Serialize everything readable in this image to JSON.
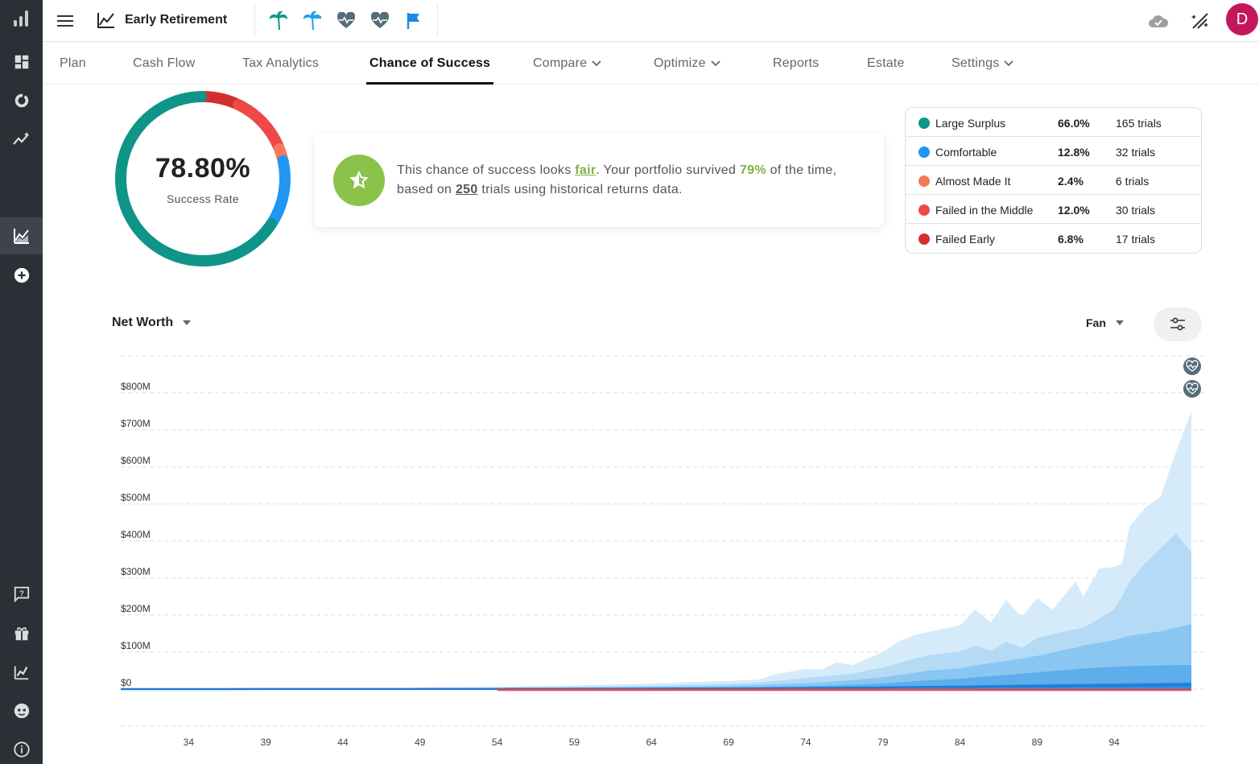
{
  "app": {
    "plan_title": "Early Retirement",
    "avatar_letter": "D"
  },
  "sidebar": {
    "items": [
      {
        "icon": "analytics-logo-icon"
      },
      {
        "icon": "dashboard-icon"
      },
      {
        "icon": "donut-icon"
      },
      {
        "icon": "trend-icon"
      },
      {
        "icon": "area-chart-icon",
        "active": true
      },
      {
        "icon": "add-circle-icon"
      },
      {
        "icon": "help-chat-icon"
      },
      {
        "icon": "gift-icon"
      },
      {
        "icon": "insights-icon"
      },
      {
        "icon": "face-icon"
      },
      {
        "icon": "info-icon"
      }
    ]
  },
  "header": {
    "quick_icons": [
      "palm-tree-icon",
      "palm-tree-icon",
      "heart-pulse-icon",
      "heart-pulse-icon",
      "flag-icon"
    ],
    "right_icons": [
      "cloud-check-icon",
      "magic-off-icon"
    ]
  },
  "tabs": [
    {
      "label": "Plan"
    },
    {
      "label": "Cash Flow"
    },
    {
      "label": "Tax Analytics"
    },
    {
      "label": "Chance of Success",
      "active": true
    },
    {
      "label": "Compare",
      "dropdown": true
    },
    {
      "label": "Optimize",
      "dropdown": true
    },
    {
      "label": "Reports"
    },
    {
      "label": "Estate"
    },
    {
      "label": "Settings",
      "dropdown": true
    }
  ],
  "success": {
    "rate": "78.80%",
    "rate_label": "Success Rate",
    "donut_segments": [
      {
        "name": "Large Surplus",
        "percent": 66.0,
        "color": "#0f9488"
      },
      {
        "name": "Comfortable",
        "percent": 12.8,
        "color": "#2196f3"
      },
      {
        "name": "Almost Made It",
        "percent": 2.4,
        "color": "#f4795b"
      },
      {
        "name": "Failed in the Middle",
        "percent": 12.0,
        "color": "#ef4848"
      },
      {
        "name": "Failed Early",
        "percent": 6.8,
        "color": "#d32f2f"
      }
    ]
  },
  "message": {
    "part1": "This chance of success looks ",
    "fair": "fair",
    "part2": ". Your portfolio survived ",
    "pct": "79%",
    "part3": " of the time, based on ",
    "trials": "250",
    "part4": " trials using historical returns data.",
    "badge_icon": "star-icon",
    "badge_color": "#8bc34a"
  },
  "legend": [
    {
      "name": "Large Surplus",
      "pct": "66.0%",
      "trials": "165 trials",
      "color": "#0f9488"
    },
    {
      "name": "Comfortable",
      "pct": "12.8%",
      "trials": "32 trials",
      "color": "#2196f3"
    },
    {
      "name": "Almost Made It",
      "pct": "2.4%",
      "trials": "6 trials",
      "color": "#f4795b"
    },
    {
      "name": "Failed in the Middle",
      "pct": "12.0%",
      "trials": "30 trials",
      "color": "#ef4848"
    },
    {
      "name": "Failed Early",
      "pct": "6.8%",
      "trials": "17 trials",
      "color": "#d32f2f"
    }
  ],
  "controls": {
    "metric": "Net Worth",
    "view": "Fan"
  },
  "chart_data": {
    "type": "area",
    "y_ticks": [
      "$0",
      "$100M",
      "$200M",
      "$300M",
      "$400M",
      "$500M",
      "$600M",
      "$700M",
      "$800M"
    ],
    "x_ticks": [
      "34",
      "39",
      "44",
      "49",
      "54",
      "59",
      "64",
      "69",
      "74",
      "79",
      "84",
      "89",
      "94"
    ],
    "ylim": [
      0,
      900
    ],
    "xlim": [
      29.6,
      99
    ],
    "grid": true,
    "x": [
      29.6,
      34,
      39,
      44,
      49,
      54,
      59,
      64,
      66,
      69,
      71,
      72,
      74,
      75,
      76,
      77,
      79,
      80,
      81,
      82,
      84,
      85,
      86,
      87,
      88,
      89,
      90,
      91,
      91.5,
      92,
      93,
      94,
      94.5,
      95,
      96,
      97,
      98,
      99
    ],
    "series": [
      {
        "color": "#d6ebfa",
        "values": [
          0.3,
          0.7,
          1.3,
          2.2,
          3.8,
          6,
          10,
          15,
          18,
          22,
          26,
          40,
          55,
          53,
          72,
          65,
          100,
          128,
          145,
          155,
          172,
          215,
          180,
          240,
          195,
          245,
          215,
          265,
          290,
          250,
          325,
          330,
          340,
          440,
          490,
          520,
          640,
          750
        ]
      },
      {
        "color": "#b4daf6",
        "values": [
          0.2,
          0.4,
          0.8,
          1.4,
          2.5,
          4,
          6.5,
          9,
          11,
          14,
          18,
          22,
          30,
          34,
          38,
          42,
          58,
          70,
          82,
          92,
          102,
          118,
          104,
          128,
          112,
          138,
          148,
          158,
          162,
          166,
          190,
          215,
          250,
          290,
          340,
          380,
          420,
          370
        ]
      },
      {
        "color": "#8ac6f2",
        "values": [
          0.1,
          0.3,
          0.5,
          0.9,
          1.5,
          2.5,
          4,
          6,
          7,
          9,
          11,
          13,
          16,
          18,
          21,
          24,
          32,
          38,
          44,
          50,
          56,
          64,
          70,
          76,
          82,
          90,
          98,
          108,
          112,
          118,
          125,
          132,
          138,
          144,
          150,
          156,
          166,
          175
        ]
      },
      {
        "color": "#5eaeec",
        "values": [
          0.1,
          0.2,
          0.3,
          0.5,
          0.8,
          1.2,
          2,
          3,
          3.5,
          4.5,
          5.5,
          6.5,
          8,
          9,
          10.5,
          12,
          15,
          18,
          21,
          24,
          28,
          32,
          35,
          38,
          42,
          45,
          49,
          52,
          54,
          56,
          58,
          60,
          61,
          62,
          63,
          64,
          65,
          65
        ]
      },
      {
        "color": "#2f8fe0",
        "values": [
          0.1,
          0.1,
          0.2,
          0.3,
          0.5,
          0.8,
          1.2,
          1.8,
          2.2,
          2.7,
          3.2,
          3.6,
          4.2,
          4.6,
          5,
          5.5,
          6.5,
          7.3,
          8,
          8.8,
          9.5,
          10.3,
          11,
          11.8,
          12.5,
          13,
          13.5,
          14,
          14.3,
          14.6,
          15,
          15.5,
          15.8,
          16,
          16.5,
          17,
          17.5,
          18
        ]
      }
    ],
    "median_line": {
      "color": "#1e7bd6",
      "values": [
        0.05,
        0.1,
        0.15,
        0.25,
        0.4,
        0.6,
        0.9,
        1.3,
        1.6,
        1.9,
        2.2,
        2.5,
        2.9,
        3.2,
        3.5,
        3.8,
        4.4,
        4.8,
        5.2,
        5.6,
        6,
        6.4,
        6.8,
        7.1,
        7.4,
        7.7,
        8,
        8.3,
        8.5,
        8.7,
        9,
        9.3,
        9.5,
        9.8,
        10.2,
        10.6,
        11.2,
        12
      ]
    },
    "failure_line": {
      "color": "#ef4848",
      "x": [
        54,
        99
      ],
      "values": [
        0,
        0
      ]
    },
    "markers": [
      {
        "icon": "heart-pulse-icon"
      },
      {
        "icon": "heart-pulse-icon"
      }
    ]
  }
}
